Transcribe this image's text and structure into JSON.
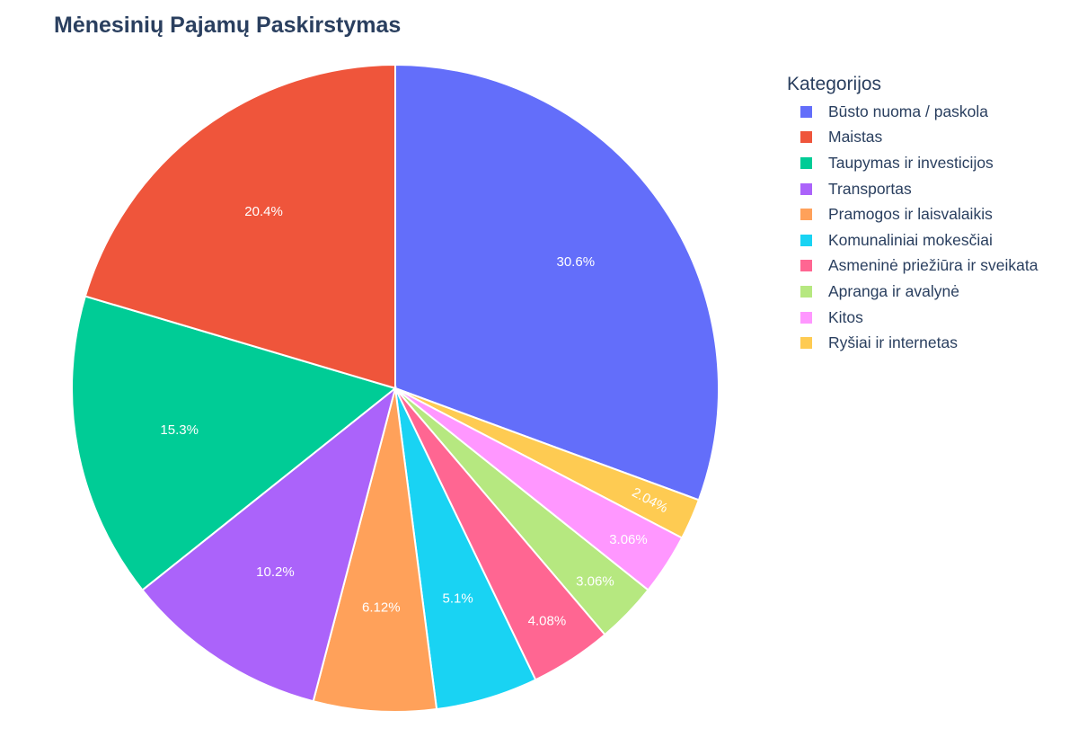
{
  "chart_data": {
    "type": "pie",
    "title": "Mėnesinių Pajamų Paskirstymas",
    "legend_title": "Kategorijos",
    "legend_placement": "right",
    "direction": "clockwise",
    "slices": [
      {
        "label": "Būsto nuoma / paskola",
        "value": 30.6,
        "text": "30.6%",
        "color": "#636efa"
      },
      {
        "label": "Ryšiai ir internetas",
        "value": 2.04,
        "text": "2.04%",
        "color": "#fecb52"
      },
      {
        "label": "Kitos",
        "value": 3.06,
        "text": "3.06%",
        "color": "#ff97ff"
      },
      {
        "label": "Apranga ir avalynė",
        "value": 3.06,
        "text": "3.06%",
        "color": "#b6e880"
      },
      {
        "label": "Asmeninė priežiūra ir sveikata",
        "value": 4.08,
        "text": "4.08%",
        "color": "#ff6692"
      },
      {
        "label": "Komunaliniai mokesčiai",
        "value": 5.1,
        "text": "5.1%",
        "color": "#19d3f3"
      },
      {
        "label": "Pramogos ir laisvalaikis",
        "value": 6.12,
        "text": "6.12%",
        "color": "#ffa15a"
      },
      {
        "label": "Transportas",
        "value": 10.2,
        "text": "10.2%",
        "color": "#ab63fa"
      },
      {
        "label": "Taupymas ir investicijos",
        "value": 15.3,
        "text": "15.3%",
        "color": "#00cc96"
      },
      {
        "label": "Maistas",
        "value": 20.4,
        "text": "20.4%",
        "color": "#ef553b"
      }
    ],
    "legend_order": [
      "Būsto nuoma / paskola",
      "Maistas",
      "Taupymas ir investicijos",
      "Transportas",
      "Pramogos ir laisvalaikis",
      "Komunaliniai mokesčiai",
      "Asmeninė priežiūra ir sveikata",
      "Apranga ir avalynė",
      "Kitos",
      "Ryšiai ir internetas"
    ]
  }
}
